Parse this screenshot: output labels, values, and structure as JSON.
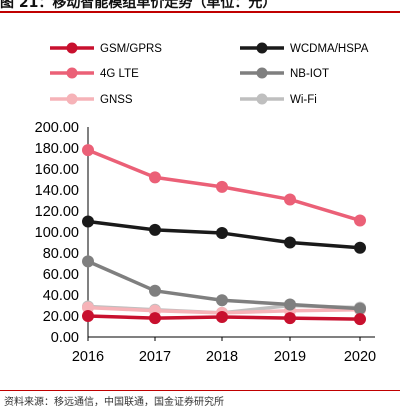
{
  "figure": {
    "title": "图 21：移动智能模组单价走势（单位：元）",
    "footer": "资料来源：移远通信，中国联通，国金证券研究所"
  },
  "chart_data": {
    "type": "line",
    "title": "",
    "xlabel": "",
    "ylabel": "",
    "x": [
      "2016",
      "2017",
      "2018",
      "2019",
      "2020"
    ],
    "ylim": [
      0,
      200
    ],
    "yticks": [
      "0.00",
      "20.00",
      "40.00",
      "60.00",
      "80.00",
      "100.00",
      "120.00",
      "140.00",
      "160.00",
      "180.00",
      "200.00"
    ],
    "grid": false,
    "legend_position": "top",
    "series": [
      {
        "name": "GSM/GPRS",
        "color": "#c8102e",
        "values": [
          20,
          18,
          19,
          18,
          17
        ]
      },
      {
        "name": "WCDMA/HSPA",
        "color": "#1a1a1a",
        "values": [
          110,
          102,
          99,
          90,
          85
        ]
      },
      {
        "name": "4G LTE",
        "color": "#eb6077",
        "values": [
          178,
          152,
          143,
          131,
          111
        ]
      },
      {
        "name": "NB-IOT",
        "color": "#7f7f7f",
        "values": [
          72,
          44,
          35,
          31,
          27
        ]
      },
      {
        "name": "GNSS",
        "color": "#f6b3b8",
        "values": [
          28,
          25,
          23,
          25,
          26
        ]
      },
      {
        "name": "Wi-Fi",
        "color": "#bfbfbf",
        "values": [
          29,
          26,
          23,
          30,
          28
        ]
      }
    ]
  }
}
